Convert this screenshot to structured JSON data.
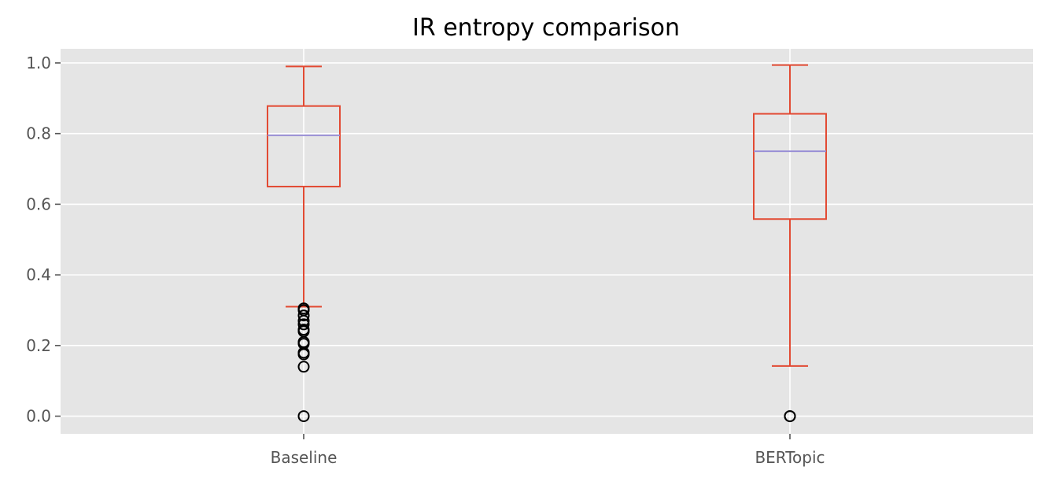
{
  "chart_data": {
    "type": "boxplot",
    "title": "IR entropy comparison",
    "xlabel": "",
    "ylabel": "",
    "categories": [
      "Baseline",
      "BERTopic"
    ],
    "ylim": [
      -0.05,
      1.04
    ],
    "yticks": [
      0.0,
      0.2,
      0.4,
      0.6,
      0.8,
      1.0
    ],
    "ytick_labels": [
      "0.0",
      "0.2",
      "0.4",
      "0.6",
      "0.8",
      "1.0"
    ],
    "grid": true,
    "series": [
      {
        "category": "Baseline",
        "whisker_low": 0.31,
        "q1": 0.65,
        "median": 0.795,
        "q3": 0.878,
        "whisker_high": 0.99,
        "outliers": [
          0.305,
          0.3,
          0.285,
          0.27,
          0.26,
          0.245,
          0.24,
          0.21,
          0.205,
          0.18,
          0.175,
          0.14,
          0.0
        ]
      },
      {
        "category": "BERTopic",
        "whisker_low": 0.142,
        "q1": 0.558,
        "median": 0.75,
        "q3": 0.856,
        "whisker_high": 0.994,
        "outliers": [
          0.0,
          0.0
        ]
      }
    ],
    "colors": {
      "plot_background": "#e5e5e5",
      "grid": "#ffffff",
      "box": "#e24a33",
      "median": "#988ed5",
      "outlier": "#000000",
      "tick_label": "#555555",
      "title": "#000000"
    }
  }
}
